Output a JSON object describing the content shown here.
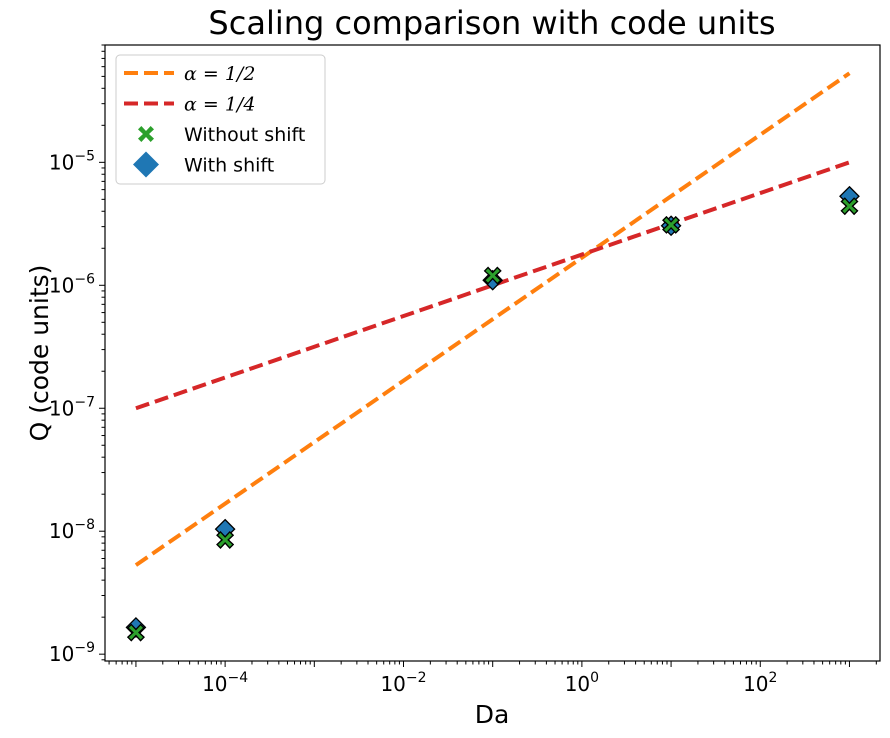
{
  "chart_data": {
    "type": "scatter",
    "title": "Scaling comparison with code units",
    "xlabel": "Da",
    "ylabel": "Q (code units)",
    "xscale": "log",
    "yscale": "log",
    "xlim": [
      4.5e-06,
      2200.0
    ],
    "ylim": [
      8.8e-10,
      9e-05
    ],
    "x_ticks": [
      {
        "value": 0.0001,
        "base": "10",
        "exp": "−4"
      },
      {
        "value": 0.01,
        "base": "10",
        "exp": "−2"
      },
      {
        "value": 1,
        "base": "10",
        "exp": "0"
      },
      {
        "value": 100,
        "base": "10",
        "exp": "2"
      }
    ],
    "y_ticks": [
      {
        "value": 1e-09,
        "base": "10",
        "exp": "−9"
      },
      {
        "value": 1e-08,
        "base": "10",
        "exp": "−8"
      },
      {
        "value": 1e-07,
        "base": "10",
        "exp": "−7"
      },
      {
        "value": 1e-06,
        "base": "10",
        "exp": "−6"
      },
      {
        "value": 1e-05,
        "base": "10",
        "exp": "−5"
      }
    ],
    "legend_position": "top-left",
    "grid": false,
    "series": [
      {
        "name": "α = 1/2",
        "kind": "line",
        "style": "dashed",
        "color": "#ff7f0e",
        "x": [
          1e-05,
          1000
        ],
        "y": [
          5.3e-09,
          5.3e-05
        ]
      },
      {
        "name": "α = 1/4",
        "kind": "line",
        "style": "dashed",
        "color": "#d62728",
        "x": [
          1e-05,
          1000
        ],
        "y": [
          1e-07,
          1e-05
        ]
      },
      {
        "name": "Without shift",
        "kind": "scatter",
        "marker": "x",
        "color": "#2ca02c",
        "x": [
          1e-05,
          0.0001,
          0.1,
          10,
          1000
        ],
        "y": [
          1.5e-09,
          8.5e-09,
          1.2e-06,
          3.1e-06,
          4.4e-06
        ]
      },
      {
        "name": "With shift",
        "kind": "scatter",
        "marker": "diamond",
        "color": "#1f77b4",
        "x": [
          1e-05,
          0.0001,
          0.1,
          10,
          1000
        ],
        "y": [
          1.65e-09,
          1.04e-08,
          1.1e-06,
          3.05e-06,
          5.3e-06
        ]
      }
    ]
  }
}
